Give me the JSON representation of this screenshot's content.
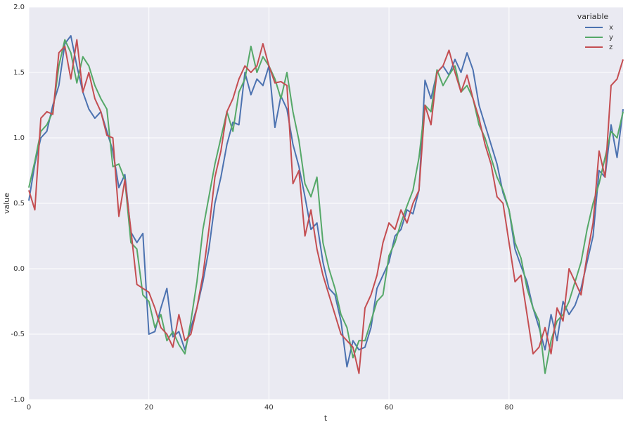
{
  "chart_data": {
    "type": "line",
    "x": [
      0,
      1,
      2,
      3,
      4,
      5,
      6,
      7,
      8,
      9,
      10,
      11,
      12,
      13,
      14,
      15,
      16,
      17,
      18,
      19,
      20,
      21,
      22,
      23,
      24,
      25,
      26,
      27,
      28,
      29,
      30,
      31,
      32,
      33,
      34,
      35,
      36,
      37,
      38,
      39,
      40,
      41,
      42,
      43,
      44,
      45,
      46,
      47,
      48,
      49,
      50,
      51,
      52,
      53,
      54,
      55,
      56,
      57,
      58,
      59,
      60,
      61,
      62,
      63,
      64,
      65,
      66,
      67,
      68,
      69,
      70,
      71,
      72,
      73,
      74,
      75,
      76,
      77,
      78,
      79,
      80,
      81,
      82,
      83,
      84,
      85,
      86,
      87,
      88,
      89,
      90,
      91,
      92,
      93,
      94,
      95,
      96,
      97,
      98,
      99
    ],
    "xlabel": "t",
    "ylabel": "value",
    "legend_title": "variable",
    "legend": "upper right",
    "grid": true,
    "xlim": [
      0,
      99
    ],
    "ylim": [
      -1,
      2
    ],
    "xticks": [
      0,
      20,
      40,
      60,
      80
    ],
    "yticks": [
      {
        "value": -1,
        "label": "-1.0"
      },
      {
        "value": -0.5,
        "label": "-0.5"
      },
      {
        "value": 0,
        "label": "0.0"
      },
      {
        "value": 0.5,
        "label": "0.5"
      },
      {
        "value": 1,
        "label": "1.0"
      },
      {
        "value": 1.5,
        "label": "1.5"
      },
      {
        "value": 2,
        "label": "2.0"
      }
    ],
    "series": [
      {
        "name": "x",
        "color": "#4c72b0",
        "values": [
          0.52,
          0.8,
          1.0,
          1.05,
          1.25,
          1.4,
          1.72,
          1.78,
          1.55,
          1.35,
          1.22,
          1.15,
          1.2,
          1.05,
          0.9,
          0.62,
          0.72,
          0.28,
          0.2,
          0.27,
          -0.5,
          -0.48,
          -0.3,
          -0.15,
          -0.52,
          -0.48,
          -0.62,
          -0.45,
          -0.3,
          -0.1,
          0.15,
          0.5,
          0.7,
          0.95,
          1.12,
          1.1,
          1.5,
          1.33,
          1.45,
          1.4,
          1.55,
          1.08,
          1.32,
          1.22,
          0.95,
          0.78,
          0.55,
          0.3,
          0.35,
          0.05,
          -0.15,
          -0.2,
          -0.4,
          -0.75,
          -0.55,
          -0.62,
          -0.6,
          -0.45,
          -0.15,
          -0.05,
          0.05,
          0.25,
          0.3,
          0.45,
          0.42,
          0.6,
          1.44,
          1.3,
          1.5,
          1.55,
          1.48,
          1.6,
          1.5,
          1.65,
          1.52,
          1.25,
          1.1,
          0.95,
          0.8,
          0.58,
          0.45,
          0.15,
          0.02,
          -0.1,
          -0.3,
          -0.45,
          -0.62,
          -0.35,
          -0.55,
          -0.25,
          -0.35,
          -0.28,
          -0.15,
          0.05,
          0.25,
          0.75,
          0.7,
          1.1,
          0.85,
          1.22
        ]
      },
      {
        "name": "y",
        "color": "#55a868",
        "values": [
          0.62,
          0.82,
          1.05,
          1.1,
          1.2,
          1.55,
          1.75,
          1.65,
          1.42,
          1.62,
          1.55,
          1.4,
          1.3,
          1.22,
          0.78,
          0.8,
          0.68,
          0.2,
          0.15,
          -0.2,
          -0.25,
          -0.45,
          -0.35,
          -0.55,
          -0.48,
          -0.58,
          -0.65,
          -0.4,
          -0.1,
          0.3,
          0.55,
          0.8,
          1.0,
          1.2,
          1.05,
          1.35,
          1.45,
          1.7,
          1.5,
          1.62,
          1.55,
          1.45,
          1.3,
          1.5,
          1.2,
          0.98,
          0.65,
          0.55,
          0.7,
          0.2,
          0.0,
          -0.15,
          -0.35,
          -0.45,
          -0.68,
          -0.55,
          -0.55,
          -0.4,
          -0.25,
          -0.2,
          0.1,
          0.2,
          0.35,
          0.48,
          0.6,
          0.85,
          1.25,
          1.2,
          1.52,
          1.4,
          1.48,
          1.55,
          1.35,
          1.4,
          1.3,
          1.1,
          1.0,
          0.85,
          0.7,
          0.6,
          0.45,
          0.2,
          0.08,
          -0.15,
          -0.3,
          -0.4,
          -0.8,
          -0.55,
          -0.4,
          -0.35,
          -0.25,
          -0.1,
          0.05,
          0.3,
          0.5,
          0.65,
          0.85,
          1.05,
          1.0,
          1.2
        ]
      },
      {
        "name": "z",
        "color": "#c44e52",
        "values": [
          0.6,
          0.45,
          1.15,
          1.2,
          1.18,
          1.65,
          1.7,
          1.45,
          1.75,
          1.35,
          1.5,
          1.3,
          1.2,
          1.02,
          1.0,
          0.4,
          0.68,
          0.3,
          -0.12,
          -0.15,
          -0.18,
          -0.3,
          -0.45,
          -0.5,
          -0.6,
          -0.35,
          -0.55,
          -0.5,
          -0.3,
          -0.05,
          0.3,
          0.7,
          0.9,
          1.2,
          1.3,
          1.45,
          1.55,
          1.5,
          1.55,
          1.72,
          1.55,
          1.42,
          1.43,
          1.4,
          0.65,
          0.75,
          0.25,
          0.45,
          0.15,
          -0.05,
          -0.2,
          -0.35,
          -0.5,
          -0.55,
          -0.6,
          -0.8,
          -0.3,
          -0.2,
          -0.05,
          0.2,
          0.35,
          0.3,
          0.45,
          0.35,
          0.5,
          0.6,
          1.25,
          1.1,
          1.5,
          1.55,
          1.67,
          1.5,
          1.35,
          1.48,
          1.3,
          1.15,
          0.95,
          0.8,
          0.55,
          0.5,
          0.2,
          -0.1,
          -0.05,
          -0.35,
          -0.65,
          -0.6,
          -0.45,
          -0.65,
          -0.3,
          -0.4,
          0.0,
          -0.1,
          -0.2,
          0.1,
          0.35,
          0.9,
          0.7,
          1.4,
          1.45,
          1.6
        ]
      }
    ]
  }
}
